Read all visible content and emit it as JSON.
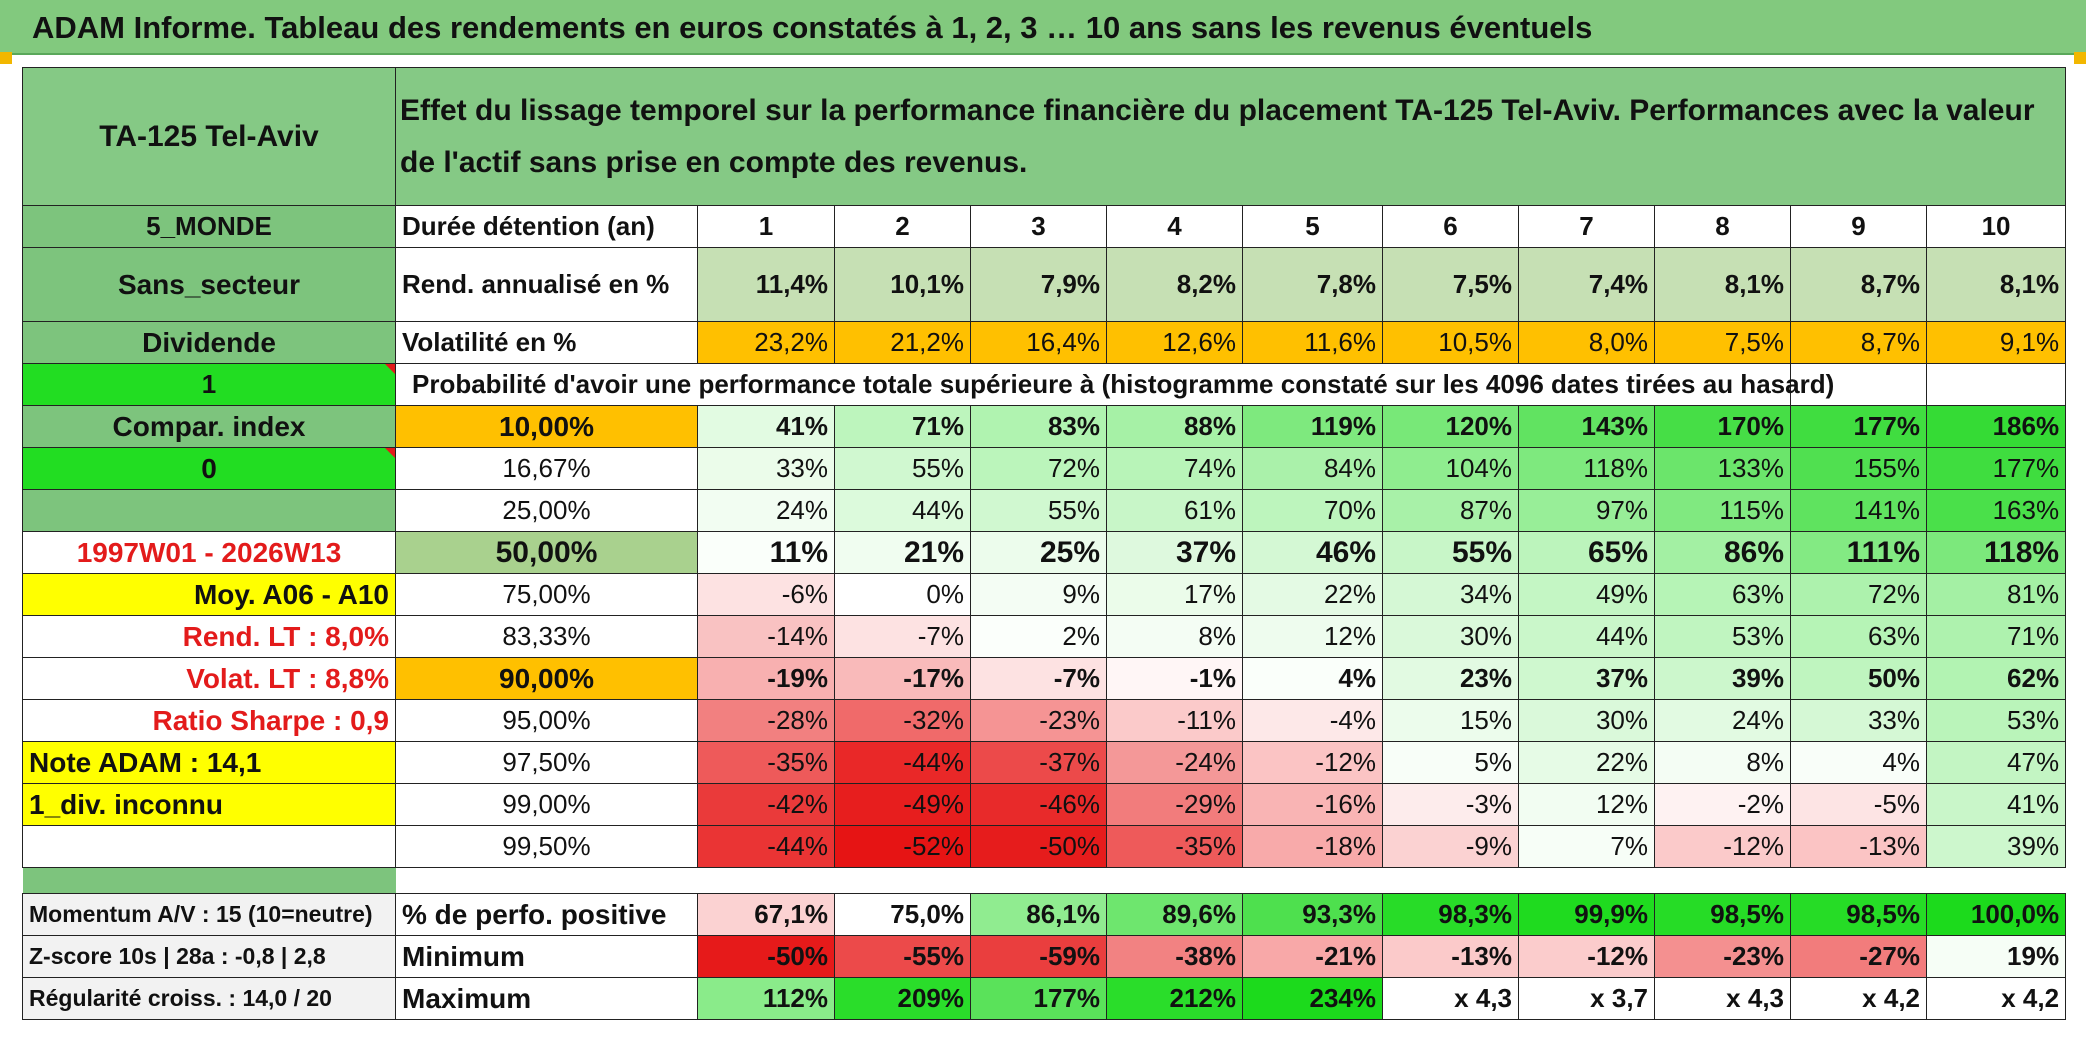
{
  "title": "ADAM Informe. Tableau des rendements en euros constatés à 1, 2, 3 … 10 ans sans les revenus éventuels",
  "header": {
    "asset": "TA-125 Tel-Aviv",
    "description": "Effet du lissage temporel sur la performance financière du placement TA-125 Tel-Aviv. Performances avec la valeur de l'actif sans prise en compte des revenus."
  },
  "side": {
    "zone": "5_MONDE",
    "sector": "Sans_secteur",
    "dividend": "Dividende",
    "one": "1",
    "compar": "Compar. index",
    "zero": "0",
    "period": "1997W01 - 2026W13",
    "moy": "Moy. A06 - A10",
    "rend_lt": "Rend. LT :   8,0%",
    "volat_lt": "Volat. LT :   8,8%",
    "sharpe": "Ratio Sharpe :   0,9",
    "note": "Note ADAM : 14,1",
    "div": "1_div. inconnu",
    "momentum": "Momentum A/V : 15 (10=neutre)",
    "zscore": "Z-score 10s | 28a : -0,8 | 2,8",
    "regularite": "Régularité croiss. : 14,0 / 20"
  },
  "labels": {
    "duree": "Durée détention (an)",
    "rend": "Rend. annualisé en %",
    "vol": "Volatilité en %",
    "proba": "Probabilité d'avoir une performance totale supérieure à (histogramme constaté sur les 4096 dates tirées au hasard)",
    "pos": "% de perfo. positive",
    "min": "Minimum",
    "max": "Maximum"
  },
  "years": [
    "1",
    "2",
    "3",
    "4",
    "5",
    "6",
    "7",
    "8",
    "9",
    "10"
  ],
  "rend": [
    "11,4%",
    "10,1%",
    "7,9%",
    "8,2%",
    "7,8%",
    "7,5%",
    "7,4%",
    "8,1%",
    "8,7%",
    "8,1%"
  ],
  "vol": [
    "23,2%",
    "21,2%",
    "16,4%",
    "12,6%",
    "11,6%",
    "10,5%",
    "8,0%",
    "7,5%",
    "8,7%",
    "9,1%"
  ],
  "quantiles": [
    {
      "label": "10,00%",
      "values": [
        "41%",
        "71%",
        "83%",
        "88%",
        "119%",
        "120%",
        "143%",
        "170%",
        "177%",
        "186%"
      ]
    },
    {
      "label": "16,67%",
      "values": [
        "33%",
        "55%",
        "72%",
        "74%",
        "84%",
        "104%",
        "118%",
        "133%",
        "155%",
        "177%"
      ]
    },
    {
      "label": "25,00%",
      "values": [
        "24%",
        "44%",
        "55%",
        "61%",
        "70%",
        "87%",
        "97%",
        "115%",
        "141%",
        "163%"
      ]
    },
    {
      "label": "50,00%",
      "values": [
        "11%",
        "21%",
        "25%",
        "37%",
        "46%",
        "55%",
        "65%",
        "86%",
        "111%",
        "118%"
      ]
    },
    {
      "label": "75,00%",
      "values": [
        "-6%",
        "0%",
        "9%",
        "17%",
        "22%",
        "34%",
        "49%",
        "63%",
        "72%",
        "81%"
      ]
    },
    {
      "label": "83,33%",
      "values": [
        "-14%",
        "-7%",
        "2%",
        "8%",
        "12%",
        "30%",
        "44%",
        "53%",
        "63%",
        "71%"
      ]
    },
    {
      "label": "90,00%",
      "values": [
        "-19%",
        "-17%",
        "-7%",
        "-1%",
        "4%",
        "23%",
        "37%",
        "39%",
        "50%",
        "62%"
      ]
    },
    {
      "label": "95,00%",
      "values": [
        "-28%",
        "-32%",
        "-23%",
        "-11%",
        "-4%",
        "15%",
        "30%",
        "24%",
        "33%",
        "53%"
      ]
    },
    {
      "label": "97,50%",
      "values": [
        "-35%",
        "-44%",
        "-37%",
        "-24%",
        "-12%",
        "5%",
        "22%",
        "8%",
        "4%",
        "47%"
      ]
    },
    {
      "label": "99,00%",
      "values": [
        "-42%",
        "-49%",
        "-46%",
        "-29%",
        "-16%",
        "-3%",
        "12%",
        "-2%",
        "-5%",
        "41%"
      ]
    },
    {
      "label": "99,50%",
      "values": [
        "-44%",
        "-52%",
        "-50%",
        "-35%",
        "-18%",
        "-9%",
        "7%",
        "-12%",
        "-13%",
        "39%"
      ]
    }
  ],
  "pos": [
    "67,1%",
    "75,0%",
    "86,1%",
    "89,6%",
    "93,3%",
    "98,3%",
    "99,9%",
    "98,5%",
    "98,5%",
    "100,0%"
  ],
  "min": [
    "-50%",
    "-55%",
    "-59%",
    "-38%",
    "-21%",
    "-13%",
    "-12%",
    "-23%",
    "-27%",
    "19%"
  ],
  "max": [
    "112%",
    "209%",
    "177%",
    "212%",
    "234%",
    "x 4,3",
    "x 3,7",
    "x 4,3",
    "x 4,2",
    "x 4,2"
  ],
  "colors": {
    "title_green": "#82c97e",
    "header_green": "#85c985",
    "side_green": "#7dc47d",
    "bright_green": "#22dd22",
    "yellow": "#ffff00",
    "orange": "#ffc000",
    "rend_green": "#c6e0b4",
    "label_red": "#e31b1b"
  }
}
